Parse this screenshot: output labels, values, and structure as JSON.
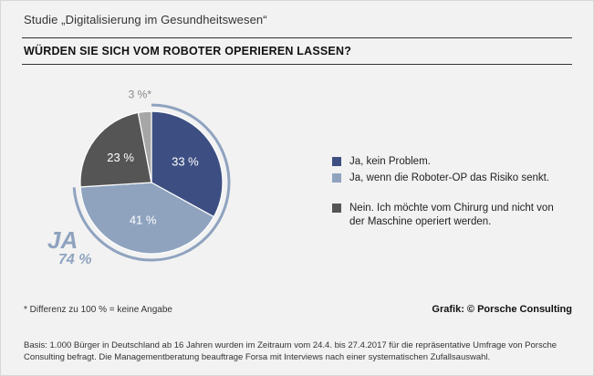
{
  "header": {
    "study_title": "Studie „Digitalisierung im Gesundheitswesen“",
    "question": "WÜRDEN SIE SICH VOM ROBOTER OPERIEREN LASSEN?"
  },
  "chart_data": {
    "type": "pie",
    "title": "WÜRDEN SIE SICH VOM ROBOTER OPERIEREN LASSEN?",
    "slices": [
      {
        "label": "Ja, kein Problem.",
        "value": 33,
        "value_label": "33 %",
        "color": "#3d4f82"
      },
      {
        "label": "Ja, wenn die Roboter-OP das Risiko senkt.",
        "value": 41,
        "value_label": "41 %",
        "color": "#8fa3bf"
      },
      {
        "label": "Nein. Ich möchte vom Chirurg und nicht von der Maschine operiert werden.",
        "value": 23,
        "value_label": "23 %",
        "color": "#555555"
      },
      {
        "label": "",
        "value": 3,
        "value_label": "3 %*",
        "color": "#a6a6a6"
      }
    ],
    "group_annotation": {
      "label": "JA",
      "value_label": "74 %",
      "value": 74,
      "color": "#8fa3bf"
    }
  },
  "legend": {
    "items": [
      {
        "label": "Ja, kein Problem.",
        "color": "#3d4f82"
      },
      {
        "label": "Ja, wenn die Roboter-OP das Risiko senkt.",
        "color": "#8fa3bf"
      },
      {
        "label": "Nein. Ich möchte vom Chirurg und nicht von der Maschine operiert werden.",
        "color": "#555555"
      }
    ]
  },
  "footer": {
    "footnote": "* Differenz zu 100 % = keine Angabe",
    "credit": "Grafik: © Porsche Consulting",
    "basis": "Basis: 1.000 Bürger in Deutschland ab 16 Jahren wurden im Zeitraum vom 24.4. bis 27.4.2017 für die repräsentative Umfrage von Porsche Consulting befragt. Die Managementberatung beauftrage Forsa mit Interviews nach einer systematischen Zufallsauswahl."
  }
}
